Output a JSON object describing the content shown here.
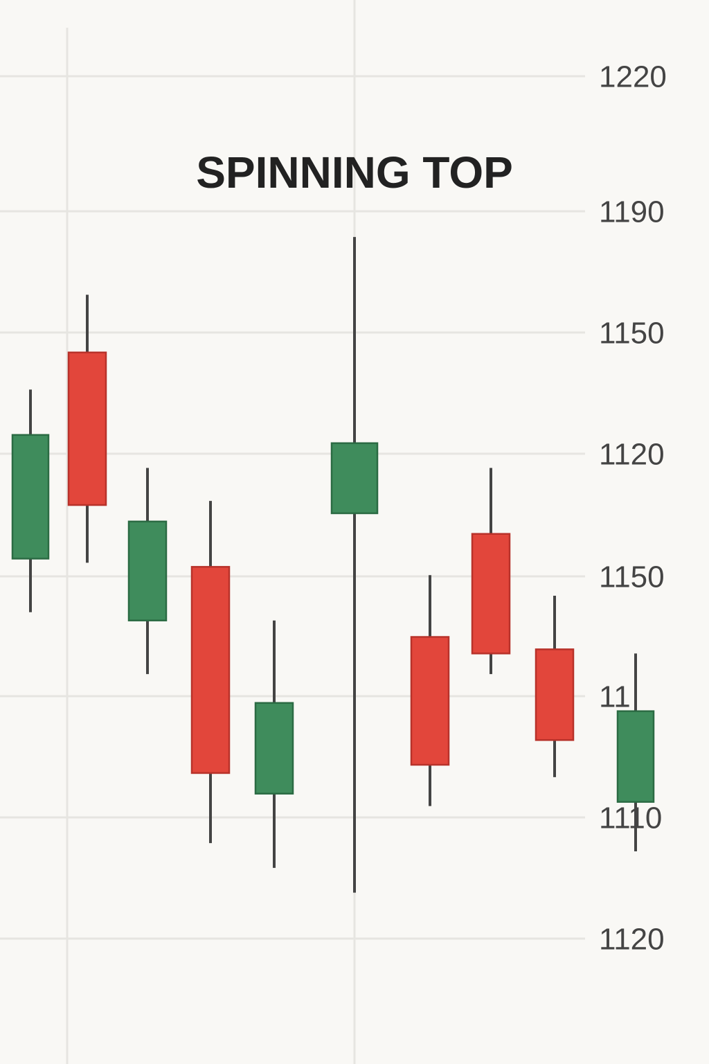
{
  "chart_data": {
    "type": "candlestick",
    "title": "SPINNING TOP",
    "y_labels": [
      "1220",
      "1190",
      "1150",
      "1120",
      "1150",
      "11",
      "1110",
      "1120"
    ],
    "ylim": [
      1010,
      1220
    ],
    "open": [
      1103,
      1153,
      1088,
      1101,
      1046,
      1114,
      1084,
      1109,
      1081,
      1044
    ],
    "high": [
      1144,
      1167,
      1125,
      1117,
      1088,
      1181,
      1099,
      1125,
      1094,
      1080
    ],
    "low": [
      1090,
      1102,
      1075,
      1034,
      1028,
      1022,
      1043,
      1075,
      1050,
      1032
    ],
    "close": [
      1133,
      1116,
      1112,
      1051,
      1068,
      1131,
      1053,
      1080,
      1059,
      1066
    ],
    "up_color": "#3f8c5c",
    "down_color": "#e2463b",
    "wick_color": "#444444",
    "grid": true
  }
}
